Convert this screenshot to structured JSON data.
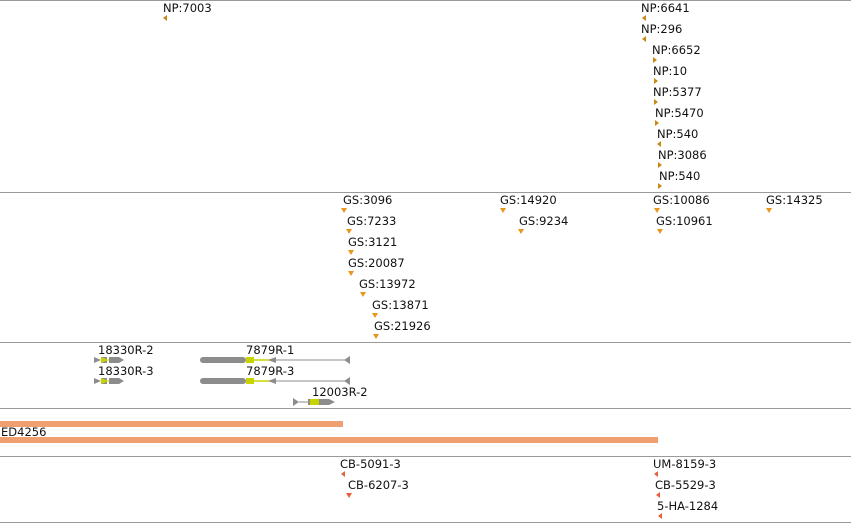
{
  "colors": {
    "np_marker": "#c88a12",
    "gs_marker": "#e8961e",
    "cb_marker": "#e8603a",
    "gene_body": "#8c8c8c",
    "gene_highlight": "#c8d400",
    "ed_bar": "#f0a070",
    "separator": "#9a9a9a"
  },
  "np_track": {
    "items": [
      "NP:7003",
      "NP:6641",
      "NP:296",
      "NP:6652",
      "NP:10",
      "NP:5377",
      "NP:5470",
      "NP:540",
      "NP:3086",
      "NP:540"
    ]
  },
  "gs_track": {
    "items": [
      "GS:3096",
      "GS:7233",
      "GS:3121",
      "GS:20087",
      "GS:13972",
      "GS:13871",
      "GS:21926",
      "GS:14920",
      "GS:9234",
      "GS:10086",
      "GS:10961",
      "GS:14325"
    ]
  },
  "gene_track": {
    "items": [
      "18330R-2",
      "18330R-3",
      "7879R-1",
      "7879R-3",
      "12003R-2"
    ]
  },
  "ed_track": {
    "label": "ED4256"
  },
  "cb_track": {
    "items": [
      "CB-5091-3",
      "CB-6207-3",
      "UM-8159-3",
      "CB-5529-3",
      "5-HA-1284"
    ]
  }
}
